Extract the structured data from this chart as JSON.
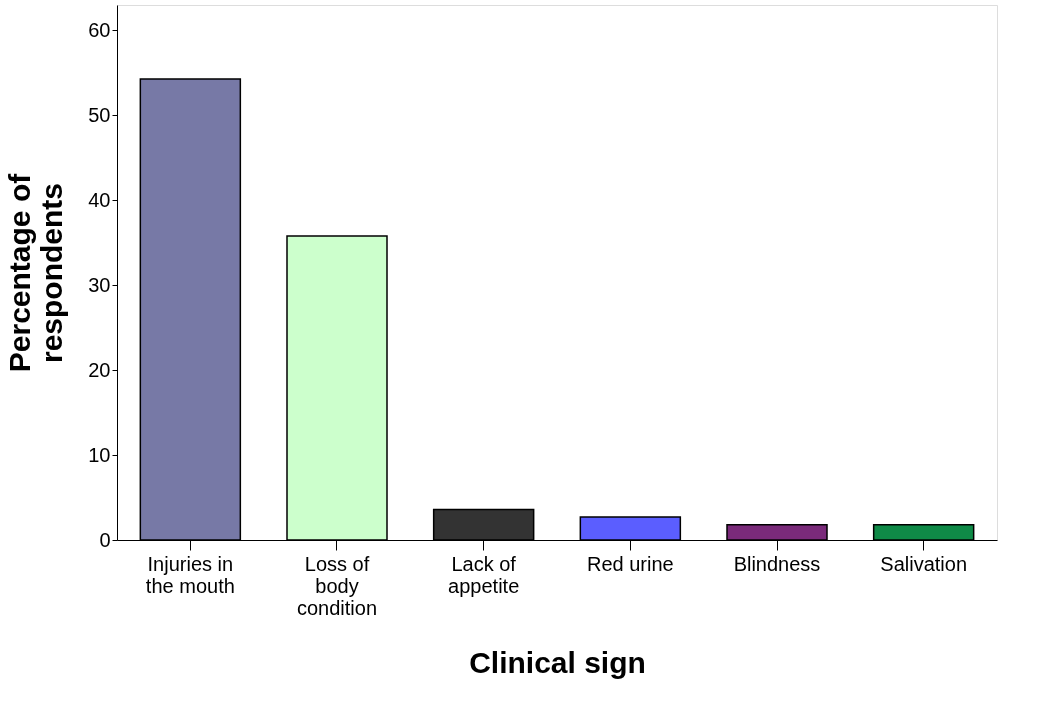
{
  "chart_data": {
    "type": "bar",
    "xlabel": "Clinical sign",
    "ylabel": "Percentage of respondents",
    "categories": [
      "Injuries in the mouth",
      "Loss of body condition",
      "Lack of appetite",
      "Red urine",
      "Blindness",
      "Salivation"
    ],
    "values": [
      54.3,
      35.8,
      3.6,
      2.7,
      1.8,
      1.8
    ],
    "colors": [
      "#7779a6",
      "#ccffcc",
      "#333333",
      "#5b5eff",
      "#7a2a7a",
      "#0f8a47"
    ],
    "ylim": [
      0,
      63
    ],
    "yticks": [
      0,
      10,
      20,
      30,
      40,
      50,
      60
    ],
    "grid": false,
    "legend": false
  }
}
